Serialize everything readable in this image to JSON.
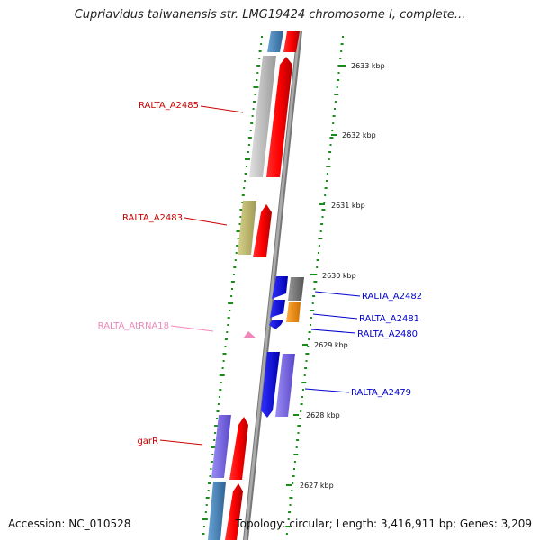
{
  "title": "Cupriavidus taiwanensis str. LMG19424 chromosome I, complete...",
  "footer": {
    "accession": "Accession: NC_010528",
    "stats": "Topology: circular; Length: 3,416,911 bp; Genes: 3,209"
  },
  "ticks": [
    "2633 kbp",
    "2632 kbp",
    "2631 kbp",
    "2630 kbp",
    "2629 kbp",
    "2628 kbp",
    "2627 kbp"
  ],
  "genes": [
    {
      "name": "RALTA_A2485",
      "color": "#cc0000"
    },
    {
      "name": "RALTA_A2483",
      "color": "#cc0000"
    },
    {
      "name": "RALTA_AtRNA18",
      "color": "#ee88bb"
    },
    {
      "name": "garR",
      "color": "#cc0000"
    },
    {
      "name": "RALTA_A2482",
      "color": "#0000cc"
    },
    {
      "name": "RALTA_A2481",
      "color": "#0000cc"
    },
    {
      "name": "RALTA_A2480",
      "color": "#0000cc"
    },
    {
      "name": "RALTA_A2479",
      "color": "#0000cc"
    }
  ],
  "colors": {
    "backbone": "#888888",
    "cds_forward": "#ff0000",
    "gene_silver": "#bbbbbb",
    "gene_olive": "#bdb76b",
    "gene_blue": "#0000ff",
    "gene_purple": "#7b68ee",
    "gene_steel": "#4682b4",
    "gene_orange": "#ff8c00",
    "gene_gray": "#777777",
    "gc_ticks": "#228b22",
    "trna": "#ee88bb"
  }
}
